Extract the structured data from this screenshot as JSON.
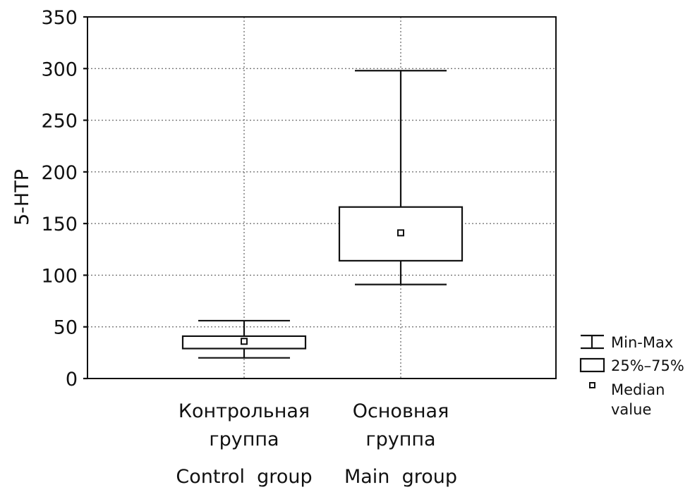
{
  "chart_data": {
    "type": "box",
    "title": "",
    "ylabel": "5-HTP",
    "xlabel": "",
    "ylim": [
      0,
      350
    ],
    "yticks": [
      0,
      50,
      100,
      150,
      200,
      250,
      300,
      350
    ],
    "grid": true,
    "legend_position": "right",
    "categories": [
      {
        "name_ru_line1": "Контрольная",
        "name_ru_line2": "группа",
        "name_en": "Control  group",
        "min": 20,
        "q1": 29,
        "median": 36,
        "q3": 41,
        "max": 56
      },
      {
        "name_ru_line1": "Основная",
        "name_ru_line2": "группа",
        "name_en": "Main  group",
        "min": 91,
        "q1": 114,
        "median": 141,
        "q3": 166,
        "max": 298
      }
    ],
    "legend": [
      {
        "symbol": "whisker",
        "label": "Min-Max"
      },
      {
        "symbol": "box",
        "label": "25%–75%"
      },
      {
        "symbol": "median",
        "label_line1": "Median",
        "label_line2": "value"
      }
    ]
  }
}
